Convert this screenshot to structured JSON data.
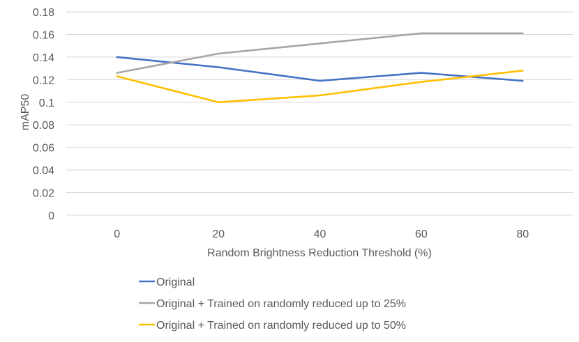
{
  "chart_data": {
    "type": "line",
    "title": "",
    "xlabel": "Random Brightness Reduction Threshold (%)",
    "ylabel": "mAP50",
    "categories": [
      "0",
      "20",
      "40",
      "60",
      "80"
    ],
    "ylim": [
      0,
      0.18
    ],
    "yticks": [
      "0",
      "0.02",
      "0.04",
      "0.06",
      "0.08",
      "0.1",
      "0.12",
      "0.14",
      "0.16",
      "0.18"
    ],
    "grid": true,
    "legend_position": "bottom",
    "series": [
      {
        "name": "Original",
        "color": "#4472C4",
        "values": [
          0.14,
          0.131,
          0.119,
          0.126,
          0.119
        ]
      },
      {
        "name": "Original + Trained on randomly reduced up to 25%",
        "color": "#A5A5A5",
        "values": [
          0.126,
          0.143,
          0.152,
          0.161,
          0.161
        ]
      },
      {
        "name": "Original + Trained on randomly reduced up to 50%",
        "color": "#FFC000",
        "values": [
          0.123,
          0.1,
          0.106,
          0.118,
          0.128
        ]
      }
    ]
  }
}
